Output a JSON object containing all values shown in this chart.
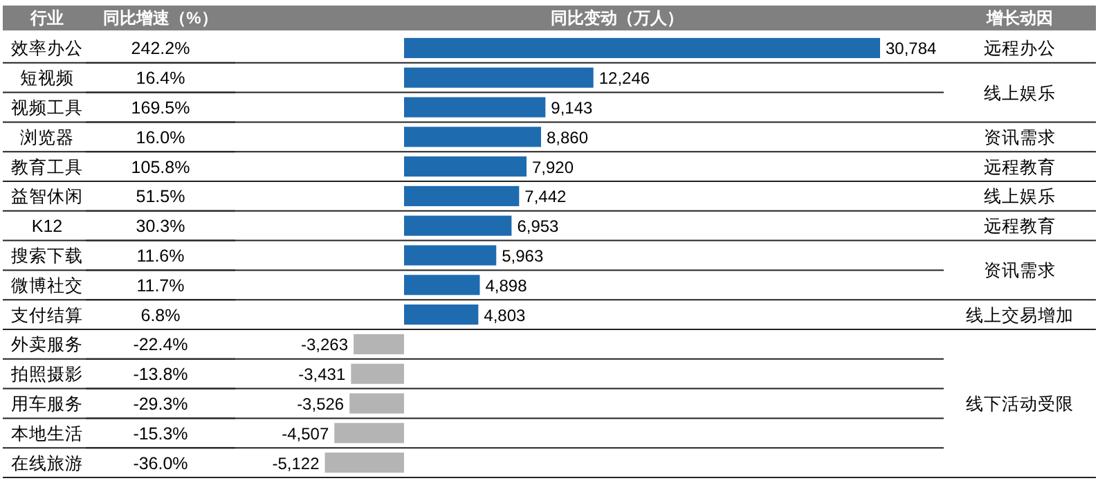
{
  "chart_data": [
    {
      "type": "bar",
      "orientation": "horizontal",
      "title": "同比变动（万人）",
      "ylabel": "行业",
      "value_labels": [
        "30,784",
        "12,246",
        "9,143",
        "8,860",
        "7,920",
        "7,442",
        "6,953",
        "5,963",
        "4,898",
        "4,803",
        "-3,263",
        "-3,431",
        "-3,526",
        "-4,507",
        "-5,122"
      ],
      "categories": [
        "效率办公",
        "短视频",
        "视频工具",
        "浏览器",
        "教育工具",
        "益智休闲",
        "K12",
        "搜索下载",
        "微博社交",
        "支付结算",
        "外卖服务",
        "拍照摄影",
        "用车服务",
        "本地生活",
        "在线旅游"
      ],
      "values": [
        30784,
        12246,
        9143,
        8860,
        7920,
        7442,
        6953,
        5963,
        4898,
        4803,
        -3263,
        -3431,
        -3526,
        -4507,
        -5122
      ],
      "colors": [
        "#1f6bb0",
        "#1f6bb0",
        "#1f6bb0",
        "#1f6bb0",
        "#1f6bb0",
        "#1f6bb0",
        "#1f6bb0",
        "#1f6bb0",
        "#1f6bb0",
        "#1f6bb0",
        "#b4b4b4",
        "#b4b4b4",
        "#b4b4b4",
        "#b4b4b4",
        "#b4b4b4"
      ]
    },
    {
      "type": "other",
      "title": "同比增速（%）",
      "categories": [
        "242.2%",
        "16.4%",
        "169.5%",
        "16.0%",
        "105.8%",
        "51.5%",
        "30.3%",
        "11.6%",
        "11.7%",
        "6.8%",
        "-22.4%",
        "-13.8%",
        "-29.3%",
        "-15.3%",
        "-36.0%"
      ]
    },
    {
      "type": "other",
      "title": "增长动因",
      "categories": [
        "远程办公",
        "线上娱乐",
        null,
        "资讯需求",
        "远程教育",
        "线上娱乐",
        "远程教育",
        "资讯需求",
        null,
        "线上交易增加",
        "线下活动受限",
        null,
        null,
        null,
        null
      ]
    }
  ]
}
